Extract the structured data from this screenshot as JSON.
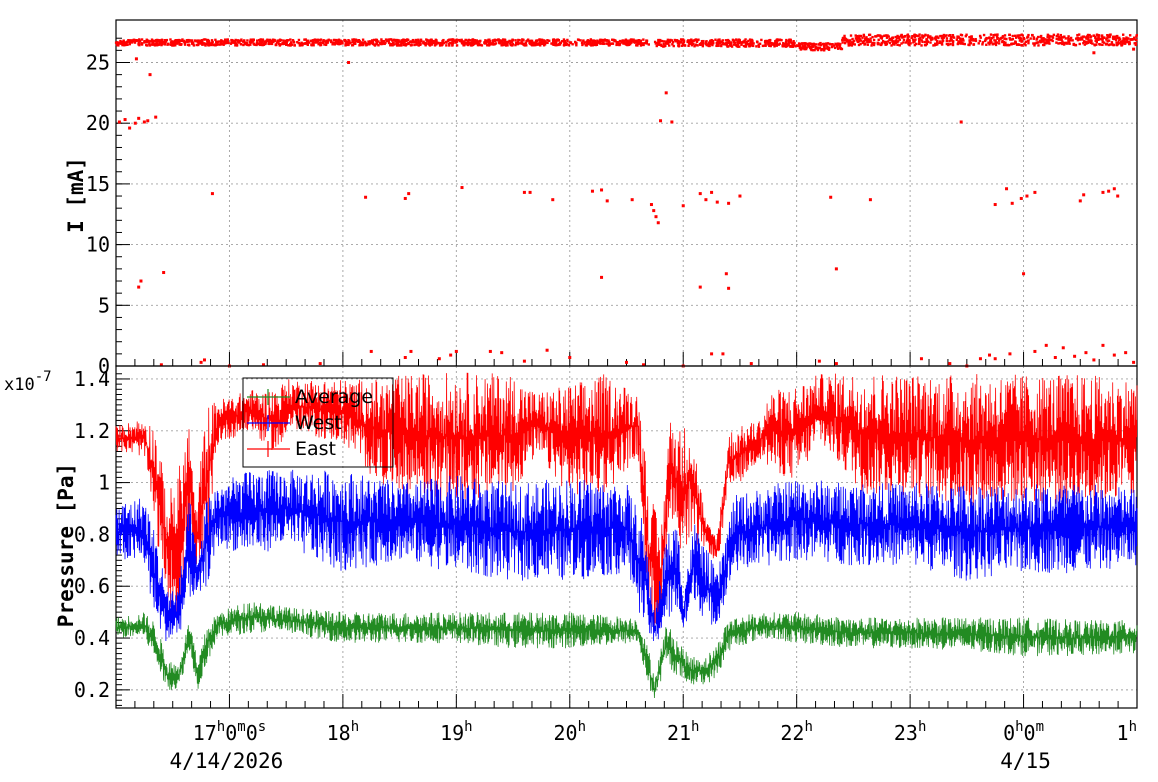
{
  "chart_data": [
    {
      "type": "scatter",
      "ylabel": "I [mA]",
      "ylim": [
        0,
        28.5
      ],
      "xlim_hours": [
        16.0,
        25.0
      ],
      "y_ticks": [
        "0",
        "5",
        "10",
        "15",
        "20",
        "25"
      ],
      "grid": true,
      "series": [
        {
          "color": "#ff0000",
          "baseline_segments": [
            {
              "x": [
                16.0,
                20.7
              ],
              "y": [
                26.4,
                26.9
              ]
            },
            {
              "x": [
                20.75,
                22.0
              ],
              "y": [
                26.3,
                26.9
              ]
            },
            {
              "x": [
                22.0,
                22.4
              ],
              "y": [
                26.0,
                26.6
              ]
            },
            {
              "x": [
                22.4,
                25.0
              ],
              "y": [
                26.4,
                27.3
              ]
            }
          ],
          "outliers": [
            [
              16.03,
              20.1
            ],
            [
              16.08,
              20.3
            ],
            [
              16.12,
              19.6
            ],
            [
              16.17,
              20.0
            ],
            [
              16.2,
              20.4
            ],
            [
              16.25,
              20.1
            ],
            [
              16.28,
              20.2
            ],
            [
              16.35,
              20.5
            ],
            [
              16.18,
              25.3
            ],
            [
              16.3,
              24.0
            ],
            [
              16.22,
              7.0
            ],
            [
              16.2,
              6.5
            ],
            [
              16.42,
              7.7
            ],
            [
              16.85,
              14.2
            ],
            [
              18.05,
              25.0
            ],
            [
              18.2,
              13.9
            ],
            [
              18.55,
              13.8
            ],
            [
              18.58,
              14.2
            ],
            [
              19.05,
              14.7
            ],
            [
              19.6,
              14.3
            ],
            [
              19.65,
              14.3
            ],
            [
              19.85,
              13.7
            ],
            [
              20.2,
              14.4
            ],
            [
              20.28,
              14.5
            ],
            [
              20.33,
              13.6
            ],
            [
              20.55,
              13.7
            ],
            [
              20.28,
              7.3
            ],
            [
              20.72,
              13.3
            ],
            [
              20.74,
              12.8
            ],
            [
              20.76,
              12.3
            ],
            [
              20.78,
              11.8
            ],
            [
              20.8,
              20.2
            ],
            [
              20.85,
              22.5
            ],
            [
              20.9,
              20.1
            ],
            [
              21.0,
              13.2
            ],
            [
              21.15,
              14.2
            ],
            [
              21.2,
              13.7
            ],
            [
              21.25,
              14.3
            ],
            [
              21.3,
              13.5
            ],
            [
              21.4,
              13.4
            ],
            [
              21.5,
              14.0
            ],
            [
              21.15,
              6.5
            ],
            [
              21.38,
              7.6
            ],
            [
              21.4,
              6.4
            ],
            [
              22.3,
              13.9
            ],
            [
              22.35,
              8.0
            ],
            [
              22.65,
              13.7
            ],
            [
              23.45,
              20.1
            ],
            [
              23.75,
              13.3
            ],
            [
              23.85,
              14.6
            ],
            [
              23.9,
              13.4
            ],
            [
              23.98,
              13.8
            ],
            [
              24.03,
              14.0
            ],
            [
              24.1,
              14.3
            ],
            [
              24.0,
              7.6
            ],
            [
              24.5,
              13.6
            ],
            [
              24.53,
              14.1
            ],
            [
              24.7,
              14.3
            ],
            [
              24.75,
              14.4
            ],
            [
              24.8,
              14.6
            ],
            [
              24.83,
              14.0
            ],
            [
              24.62,
              25.8
            ],
            [
              24.97,
              26.1
            ],
            [
              16.4,
              0.1
            ],
            [
              16.75,
              0.3
            ],
            [
              16.78,
              0.5
            ],
            [
              17.0,
              0.0
            ],
            [
              17.3,
              0.1
            ],
            [
              17.8,
              0.2
            ],
            [
              18.25,
              1.2
            ],
            [
              18.55,
              0.7
            ],
            [
              18.6,
              1.2
            ],
            [
              18.85,
              0.6
            ],
            [
              18.95,
              0.9
            ],
            [
              19.0,
              1.2
            ],
            [
              19.3,
              1.2
            ],
            [
              19.4,
              1.1
            ],
            [
              19.6,
              0.4
            ],
            [
              19.8,
              1.3
            ],
            [
              20.0,
              0.7
            ],
            [
              20.5,
              0.3
            ],
            [
              20.65,
              0.1
            ],
            [
              21.0,
              0.0
            ],
            [
              21.25,
              1.0
            ],
            [
              21.35,
              1.0
            ],
            [
              21.6,
              0.2
            ],
            [
              22.2,
              0.4
            ],
            [
              22.35,
              0.2
            ],
            [
              23.1,
              0.6
            ],
            [
              23.35,
              0.2
            ],
            [
              23.5,
              0.0
            ],
            [
              23.62,
              0.6
            ],
            [
              23.7,
              0.9
            ],
            [
              23.75,
              0.6
            ],
            [
              23.88,
              1.0
            ],
            [
              24.1,
              1.2
            ],
            [
              24.2,
              1.7
            ],
            [
              24.28,
              0.7
            ],
            [
              24.35,
              1.5
            ],
            [
              24.45,
              0.8
            ],
            [
              24.55,
              1.1
            ],
            [
              24.62,
              0.5
            ],
            [
              24.7,
              1.7
            ],
            [
              24.8,
              0.9
            ],
            [
              24.9,
              1.1
            ],
            [
              24.97,
              0.3
            ]
          ]
        }
      ]
    },
    {
      "type": "line",
      "ylabel": "Pressure [Pa]",
      "yscale_label": "x10",
      "yscale_exponent": "-7",
      "ylim": [
        0.13,
        1.45
      ],
      "y_ticks": [
        "0.2",
        "0.4",
        "0.6",
        "0.8",
        "1",
        "1.2",
        "1.4"
      ],
      "xlim_hours": [
        16.0,
        25.0
      ],
      "x_ticks": [
        {
          "h": 17,
          "hour": "17",
          "sup1": "h",
          "mid1": "0",
          "sup2": "m",
          "mid2": "0",
          "sup3": "s"
        },
        {
          "h": 18,
          "hour": "18",
          "sup1": "h"
        },
        {
          "h": 19,
          "hour": "19",
          "sup1": "h"
        },
        {
          "h": 20,
          "hour": "20",
          "sup1": "h"
        },
        {
          "h": 21,
          "hour": "21",
          "sup1": "h"
        },
        {
          "h": 22,
          "hour": "22",
          "sup1": "h"
        },
        {
          "h": 23,
          "hour": "23",
          "sup1": "h"
        },
        {
          "h": 24,
          "hour": "0",
          "sup1": "h",
          "mid1": "0",
          "sup2": "m"
        },
        {
          "h": 25,
          "hour": "1",
          "sup1": "h"
        }
      ],
      "dates": [
        "4/14/2026",
        "4/15"
      ],
      "grid": true,
      "legend": {
        "position": "top-left",
        "entries": [
          "Average",
          "West",
          "East"
        ]
      },
      "series": [
        {
          "name": "East",
          "color": "#ff0000",
          "profile": [
            [
              16.0,
              1.12,
              1.22
            ],
            [
              16.25,
              1.1,
              1.25
            ],
            [
              16.35,
              0.8,
              1.22
            ],
            [
              16.45,
              0.55,
              0.95
            ],
            [
              16.55,
              0.45,
              1.05
            ],
            [
              16.65,
              0.8,
              1.25
            ],
            [
              16.7,
              0.6,
              0.9
            ],
            [
              16.8,
              0.72,
              1.3
            ],
            [
              16.9,
              1.15,
              1.32
            ],
            [
              17.2,
              1.2,
              1.36
            ],
            [
              17.3,
              1.15,
              1.35
            ],
            [
              17.45,
              1.1,
              1.38
            ],
            [
              17.5,
              1.2,
              1.4
            ],
            [
              18.0,
              1.15,
              1.4
            ],
            [
              18.3,
              1.0,
              1.4
            ],
            [
              18.6,
              0.95,
              1.42
            ],
            [
              19.0,
              0.92,
              1.43
            ],
            [
              19.5,
              0.95,
              1.42
            ],
            [
              19.7,
              1.1,
              1.35
            ],
            [
              20.0,
              0.95,
              1.38
            ],
            [
              20.3,
              0.95,
              1.42
            ],
            [
              20.6,
              1.1,
              1.35
            ],
            [
              20.7,
              0.45,
              1.0
            ],
            [
              20.8,
              0.4,
              0.8
            ],
            [
              20.88,
              0.9,
              1.25
            ],
            [
              21.0,
              0.7,
              1.2
            ],
            [
              21.05,
              0.75,
              1.3
            ],
            [
              21.2,
              0.75,
              0.85
            ],
            [
              21.3,
              0.68,
              0.8
            ],
            [
              21.4,
              0.95,
              1.2
            ],
            [
              21.7,
              1.1,
              1.25
            ],
            [
              21.75,
              1.05,
              1.35
            ],
            [
              22.0,
              1.0,
              1.38
            ],
            [
              22.2,
              1.15,
              1.42
            ],
            [
              22.6,
              0.95,
              1.43
            ],
            [
              23.0,
              0.95,
              1.42
            ],
            [
              23.5,
              0.9,
              1.42
            ],
            [
              24.0,
              0.92,
              1.42
            ],
            [
              24.5,
              0.9,
              1.42
            ],
            [
              25.0,
              0.95,
              1.4
            ]
          ]
        },
        {
          "name": "West",
          "color": "#0000ff",
          "profile": [
            [
              16.0,
              0.7,
              0.92
            ],
            [
              16.25,
              0.68,
              0.95
            ],
            [
              16.35,
              0.45,
              0.8
            ],
            [
              16.45,
              0.38,
              0.6
            ],
            [
              16.55,
              0.4,
              0.6
            ],
            [
              16.65,
              0.55,
              0.95
            ],
            [
              16.72,
              0.55,
              0.7
            ],
            [
              16.8,
              0.6,
              0.95
            ],
            [
              16.9,
              0.75,
              1.0
            ],
            [
              17.2,
              0.72,
              1.05
            ],
            [
              17.5,
              0.75,
              1.05
            ],
            [
              18.0,
              0.65,
              1.05
            ],
            [
              18.5,
              0.7,
              1.0
            ],
            [
              19.0,
              0.65,
              1.03
            ],
            [
              19.5,
              0.62,
              1.0
            ],
            [
              20.0,
              0.62,
              1.02
            ],
            [
              20.5,
              0.65,
              1.0
            ],
            [
              20.65,
              0.45,
              0.85
            ],
            [
              20.75,
              0.36,
              0.5
            ],
            [
              20.85,
              0.45,
              0.8
            ],
            [
              20.95,
              0.5,
              0.85
            ],
            [
              21.0,
              0.4,
              0.6
            ],
            [
              21.1,
              0.55,
              0.85
            ],
            [
              21.2,
              0.45,
              0.75
            ],
            [
              21.3,
              0.45,
              0.65
            ],
            [
              21.45,
              0.65,
              0.95
            ],
            [
              22.0,
              0.7,
              1.02
            ],
            [
              22.5,
              0.68,
              1.0
            ],
            [
              23.0,
              0.68,
              1.0
            ],
            [
              23.5,
              0.62,
              1.0
            ],
            [
              24.0,
              0.65,
              1.0
            ],
            [
              24.5,
              0.65,
              1.0
            ],
            [
              25.0,
              0.68,
              0.98
            ]
          ]
        },
        {
          "name": "Average",
          "color": "#228b22",
          "profile": [
            [
              16.0,
              0.4,
              0.48
            ],
            [
              16.25,
              0.4,
              0.5
            ],
            [
              16.35,
              0.3,
              0.46
            ],
            [
              16.45,
              0.2,
              0.32
            ],
            [
              16.55,
              0.2,
              0.3
            ],
            [
              16.65,
              0.35,
              0.48
            ],
            [
              16.72,
              0.2,
              0.3
            ],
            [
              16.8,
              0.3,
              0.45
            ],
            [
              16.9,
              0.4,
              0.5
            ],
            [
              17.2,
              0.42,
              0.55
            ],
            [
              17.5,
              0.42,
              0.52
            ],
            [
              18.0,
              0.38,
              0.5
            ],
            [
              18.5,
              0.38,
              0.5
            ],
            [
              19.0,
              0.38,
              0.5
            ],
            [
              19.5,
              0.36,
              0.5
            ],
            [
              20.0,
              0.36,
              0.5
            ],
            [
              20.6,
              0.38,
              0.48
            ],
            [
              20.7,
              0.2,
              0.35
            ],
            [
              20.75,
              0.16,
              0.25
            ],
            [
              20.85,
              0.3,
              0.46
            ],
            [
              20.95,
              0.25,
              0.4
            ],
            [
              21.05,
              0.22,
              0.33
            ],
            [
              21.2,
              0.22,
              0.33
            ],
            [
              21.3,
              0.25,
              0.38
            ],
            [
              21.4,
              0.35,
              0.48
            ],
            [
              21.7,
              0.4,
              0.5
            ],
            [
              22.0,
              0.38,
              0.5
            ],
            [
              22.5,
              0.36,
              0.48
            ],
            [
              23.0,
              0.36,
              0.48
            ],
            [
              23.5,
              0.35,
              0.48
            ],
            [
              24.0,
              0.33,
              0.48
            ],
            [
              24.5,
              0.33,
              0.47
            ],
            [
              25.0,
              0.34,
              0.47
            ]
          ]
        }
      ]
    }
  ]
}
